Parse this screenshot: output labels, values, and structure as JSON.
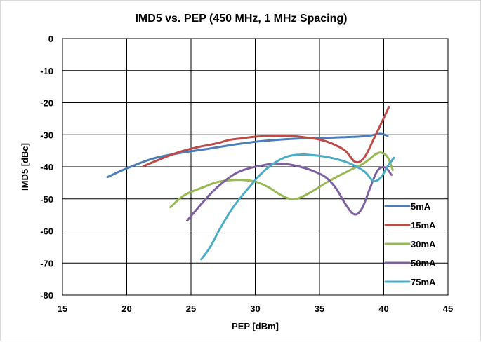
{
  "chart_data": {
    "type": "line",
    "title": "IMD5 vs. PEP (450 MHz, 1 MHz Spacing)",
    "xlabel": "PEP [dBm]",
    "ylabel": "IMD5 [dBc]",
    "xlim": [
      15,
      45
    ],
    "ylim": [
      -80,
      0
    ],
    "x_ticks": [
      15,
      20,
      25,
      30,
      35,
      40,
      45
    ],
    "y_ticks": [
      0,
      -10,
      -20,
      -30,
      -40,
      -50,
      -60,
      -70,
      -80
    ],
    "grid": true,
    "legend_position": "right",
    "series": [
      {
        "name": "5mA",
        "color": "#4a7ebb",
        "points": [
          [
            18.5,
            -43.2
          ],
          [
            20.0,
            -40.5
          ],
          [
            22.0,
            -37.5
          ],
          [
            24.0,
            -35.8
          ],
          [
            26.0,
            -34.6
          ],
          [
            28.0,
            -33.3
          ],
          [
            30.0,
            -32.2
          ],
          [
            32.0,
            -31.5
          ],
          [
            34.0,
            -31.1
          ],
          [
            36.0,
            -30.9
          ],
          [
            38.0,
            -30.6
          ],
          [
            39.0,
            -30.2
          ],
          [
            39.7,
            -29.7
          ],
          [
            40.3,
            -30.3
          ]
        ]
      },
      {
        "name": "15mA",
        "color": "#be4b48",
        "points": [
          [
            21.3,
            -39.8
          ],
          [
            22.5,
            -37.8
          ],
          [
            24.0,
            -35.5
          ],
          [
            25.5,
            -33.9
          ],
          [
            27.0,
            -32.7
          ],
          [
            28.0,
            -31.6
          ],
          [
            29.0,
            -31.1
          ],
          [
            30.0,
            -30.6
          ],
          [
            31.0,
            -30.4
          ],
          [
            32.0,
            -30.3
          ],
          [
            33.0,
            -30.4
          ],
          [
            34.0,
            -30.9
          ],
          [
            35.0,
            -31.5
          ],
          [
            36.0,
            -32.8
          ],
          [
            37.0,
            -35.0
          ],
          [
            37.8,
            -38.5
          ],
          [
            38.5,
            -37.0
          ],
          [
            39.2,
            -31.5
          ],
          [
            39.8,
            -26.5
          ],
          [
            40.4,
            -21.3
          ]
        ]
      },
      {
        "name": "30mA",
        "color": "#98b954",
        "points": [
          [
            23.4,
            -52.6
          ],
          [
            24.5,
            -48.8
          ],
          [
            26.0,
            -46.3
          ],
          [
            27.0,
            -44.8
          ],
          [
            28.0,
            -44.2
          ],
          [
            29.0,
            -44.1
          ],
          [
            30.0,
            -44.6
          ],
          [
            31.0,
            -46.3
          ],
          [
            32.0,
            -48.8
          ],
          [
            32.8,
            -50.1
          ],
          [
            33.5,
            -49.6
          ],
          [
            34.5,
            -47.5
          ],
          [
            35.5,
            -45.0
          ],
          [
            36.5,
            -42.8
          ],
          [
            37.5,
            -40.8
          ],
          [
            38.5,
            -38.8
          ],
          [
            39.3,
            -36.3
          ],
          [
            39.8,
            -35.6
          ],
          [
            40.3,
            -37.0
          ],
          [
            40.7,
            -41.0
          ]
        ]
      },
      {
        "name": "50mA",
        "color": "#7d60a0",
        "points": [
          [
            24.7,
            -56.8
          ],
          [
            25.5,
            -53.0
          ],
          [
            26.5,
            -48.5
          ],
          [
            27.5,
            -44.8
          ],
          [
            28.5,
            -42.0
          ],
          [
            29.5,
            -40.5
          ],
          [
            30.5,
            -39.6
          ],
          [
            31.5,
            -39.0
          ],
          [
            32.5,
            -39.2
          ],
          [
            33.5,
            -40.0
          ],
          [
            34.5,
            -41.3
          ],
          [
            35.5,
            -43.3
          ],
          [
            36.3,
            -46.8
          ],
          [
            37.0,
            -51.5
          ],
          [
            37.7,
            -54.8
          ],
          [
            38.3,
            -53.0
          ],
          [
            38.9,
            -47.0
          ],
          [
            39.5,
            -41.3
          ],
          [
            40.1,
            -40.2
          ],
          [
            40.6,
            -42.5
          ]
        ]
      },
      {
        "name": "75mA",
        "color": "#4bacc6",
        "points": [
          [
            25.8,
            -68.8
          ],
          [
            26.5,
            -65.0
          ],
          [
            27.3,
            -59.0
          ],
          [
            28.3,
            -52.5
          ],
          [
            29.5,
            -46.5
          ],
          [
            30.5,
            -42.0
          ],
          [
            31.5,
            -38.8
          ],
          [
            32.5,
            -36.8
          ],
          [
            33.5,
            -36.2
          ],
          [
            34.5,
            -36.4
          ],
          [
            35.5,
            -36.9
          ],
          [
            36.5,
            -37.8
          ],
          [
            37.5,
            -39.2
          ],
          [
            38.5,
            -41.5
          ],
          [
            39.2,
            -44.4
          ],
          [
            39.8,
            -43.2
          ],
          [
            40.3,
            -39.8
          ],
          [
            40.8,
            -37.2
          ]
        ]
      }
    ]
  }
}
